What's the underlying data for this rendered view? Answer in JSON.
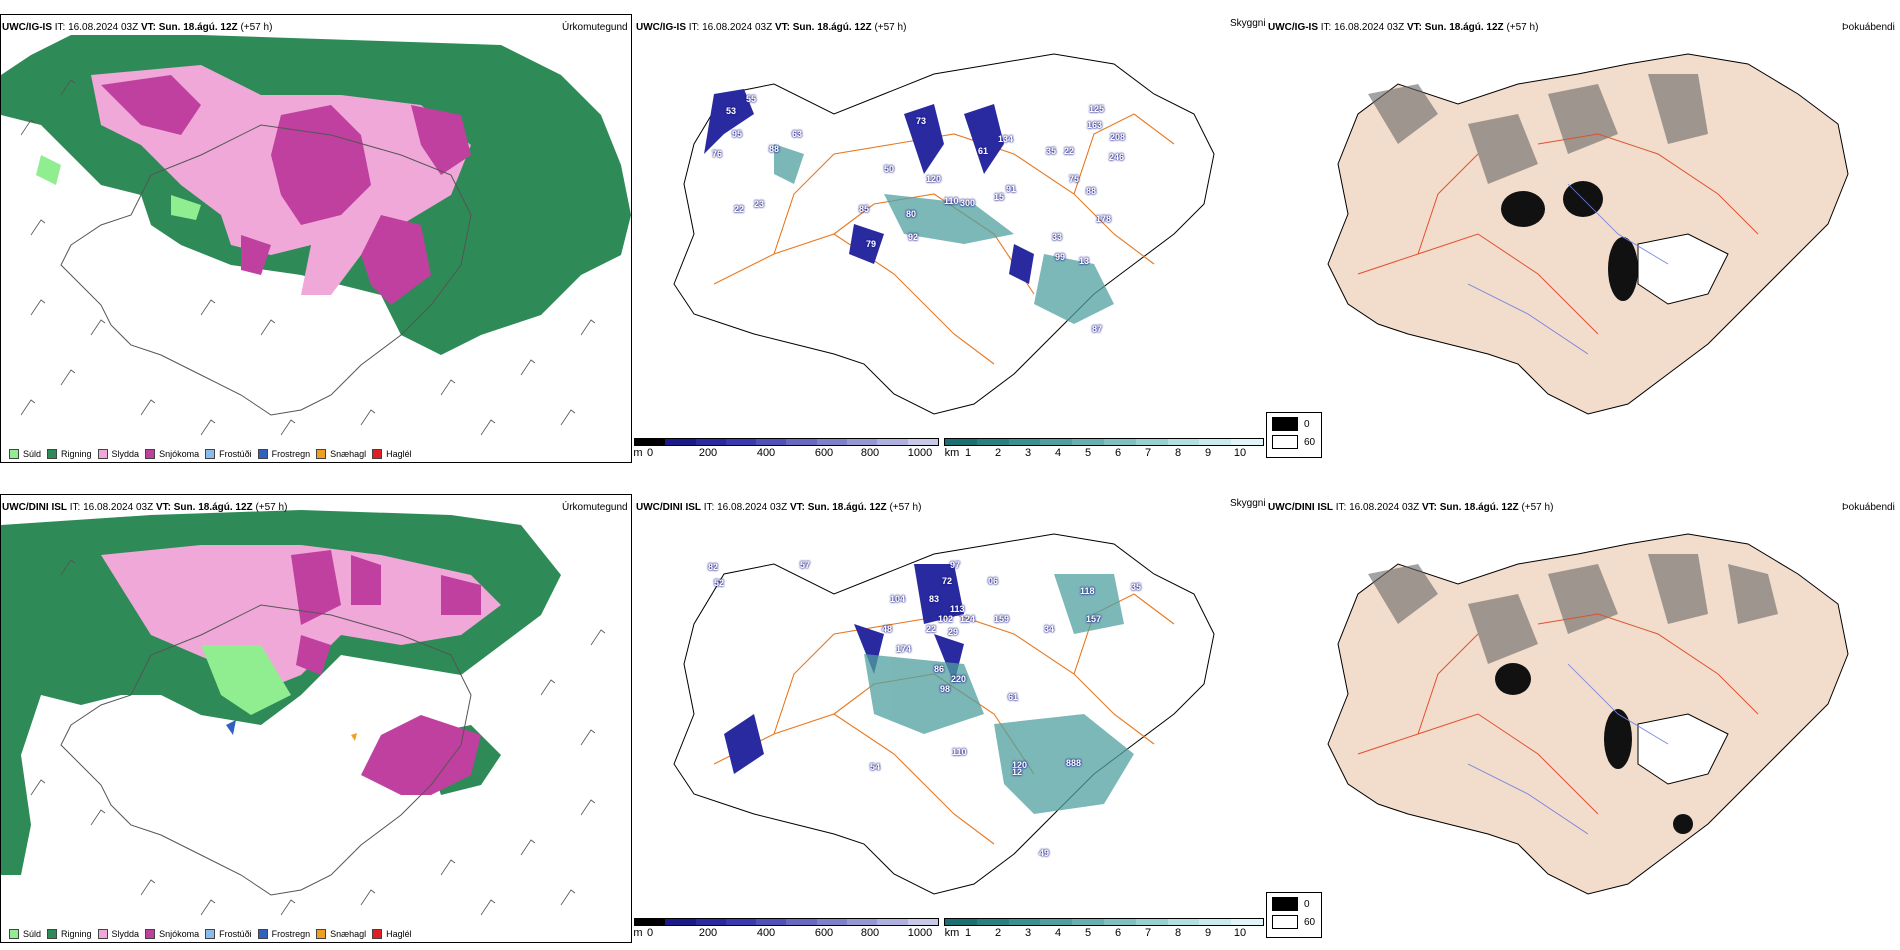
{
  "rows": [
    {
      "model": "UWC/IG-IS",
      "it_label": "IT: 16.08.2024 03Z",
      "vt_label": "VT: Sun. 18.ágú. 12Z",
      "lead": "(+57 h)"
    },
    {
      "model": "UWC/DINI ISL",
      "it_label": "IT: 16.08.2024 03Z",
      "vt_label": "VT: Sun. 18.ágú. 12Z",
      "lead": "(+57 h)"
    }
  ],
  "panel_titles": {
    "precip": "Úrkomutegund",
    "visibility": "Skyggni",
    "fog": "Þokuábendi"
  },
  "precip_legend": [
    {
      "label": "Súld",
      "color": "#90ee90"
    },
    {
      "label": "Rigning",
      "color": "#2e8b57"
    },
    {
      "label": "Slydda",
      "color": "#f0a8d8"
    },
    {
      "label": "Snjókoma",
      "color": "#c040a0"
    },
    {
      "label": "Frostúði",
      "color": "#88bbee"
    },
    {
      "label": "Frostregn",
      "color": "#3060c0"
    },
    {
      "label": "Snæhagl",
      "color": "#f0a020"
    },
    {
      "label": "Haglél",
      "color": "#e02020"
    }
  ],
  "ceiling_scale": {
    "unit": "m",
    "ticks": [
      "0",
      "200",
      "400",
      "600",
      "800",
      "1000"
    ],
    "colors": [
      "#000000",
      "#1a1a8a",
      "#2a2aa0",
      "#3a3ab0",
      "#5050b8",
      "#6868c0",
      "#8080c8",
      "#9898d0",
      "#b0b0dc",
      "#c8c8e8"
    ]
  },
  "visibility_scale": {
    "unit": "km",
    "ticks": [
      "1",
      "2",
      "3",
      "4",
      "5",
      "6",
      "7",
      "8",
      "9",
      "10"
    ],
    "colors": [
      "#1a7070",
      "#2a8080",
      "#3a9090",
      "#50a0a0",
      "#68b0b0",
      "#80c0c0",
      "#98d0d0",
      "#b0e0e0",
      "#c8ecec",
      "#e0f6f6"
    ]
  },
  "fog_legend": [
    {
      "label": "0",
      "color": "#000000"
    },
    {
      "label": "60",
      "color": "#ffffff"
    }
  ],
  "map_labels": {
    "row1": [
      "53",
      "55",
      "76",
      "95",
      "88",
      "63",
      "22",
      "23",
      "73",
      "120",
      "80",
      "50",
      "79",
      "85",
      "92",
      "110",
      "300",
      "15",
      "61",
      "134",
      "91",
      "125",
      "163",
      "208",
      "246",
      "22",
      "35",
      "75",
      "88",
      "178",
      "33",
      "99",
      "13",
      "87"
    ],
    "row2": [
      "82",
      "52",
      "57",
      "97",
      "72",
      "06",
      "83",
      "113",
      "102",
      "124",
      "22",
      "29",
      "34",
      "104",
      "48",
      "174",
      "86",
      "98",
      "220",
      "159",
      "110",
      "61",
      "120",
      "12",
      "888",
      "118",
      "157",
      "54",
      "49",
      "35"
    ]
  }
}
